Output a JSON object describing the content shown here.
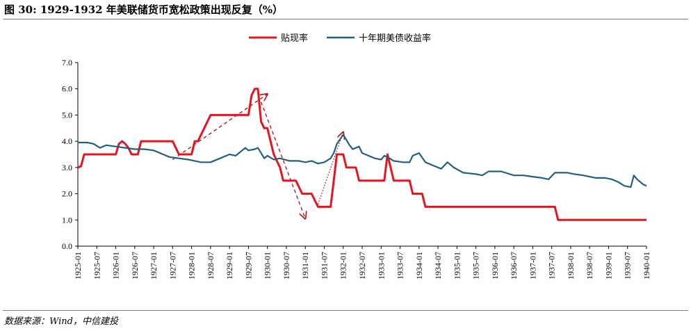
{
  "header": {
    "title": "图 30: 1929-1932 年美联储货币宽松政策出现反复（%）"
  },
  "footer": {
    "source": "数据来源：Wind，中信建投"
  },
  "colors": {
    "discount": "#e8141c",
    "treasury": "#1f5f86",
    "arrow": "#c0141c"
  },
  "chart_data": {
    "type": "line",
    "title": "",
    "xlabel": "",
    "ylabel": "",
    "ylim": [
      0,
      7
    ],
    "yticks": [
      "0.0",
      "1.0",
      "2.0",
      "3.0",
      "4.0",
      "5.0",
      "6.0",
      "7.0"
    ],
    "xlim": [
      "1925-01",
      "1940-01"
    ],
    "xticks": [
      "1925-01",
      "1925-07",
      "1926-01",
      "1926-07",
      "1927-01",
      "1927-07",
      "1928-01",
      "1928-07",
      "1929-01",
      "1929-07",
      "1930-01",
      "1930-07",
      "1931-01",
      "1931-07",
      "1932-01",
      "1932-07",
      "1933-01",
      "1933-07",
      "1934-01",
      "1934-07",
      "1935-01",
      "1935-07",
      "1936-01",
      "1936-07",
      "1937-01",
      "1937-07",
      "1938-01",
      "1938-07",
      "1939-01",
      "1939-07",
      "1940-01"
    ],
    "legend_position": "top",
    "grid": false,
    "series": [
      {
        "name": "贴现率",
        "color": "#e8141c",
        "points": [
          [
            "1925-01",
            3.0
          ],
          [
            "1925-02",
            3.05
          ],
          [
            "1925-03",
            3.5
          ],
          [
            "1925-07",
            3.5
          ],
          [
            "1925-12",
            3.5
          ],
          [
            "1926-01",
            3.5
          ],
          [
            "1926-02",
            3.9
          ],
          [
            "1926-03",
            4.0
          ],
          [
            "1926-04",
            3.9
          ],
          [
            "1926-05",
            3.75
          ],
          [
            "1926-06",
            3.5
          ],
          [
            "1926-07",
            3.5
          ],
          [
            "1926-08",
            3.5
          ],
          [
            "1926-09",
            4.0
          ],
          [
            "1927-01",
            4.0
          ],
          [
            "1927-07",
            4.0
          ],
          [
            "1927-08",
            3.75
          ],
          [
            "1927-09",
            3.5
          ],
          [
            "1928-01",
            3.5
          ],
          [
            "1928-02",
            4.0
          ],
          [
            "1928-03",
            4.0
          ],
          [
            "1928-05",
            4.5
          ],
          [
            "1928-07",
            5.0
          ],
          [
            "1929-01",
            5.0
          ],
          [
            "1929-07",
            5.0
          ],
          [
            "1929-08",
            5.75
          ],
          [
            "1929-09",
            6.0
          ],
          [
            "1929-10",
            6.0
          ],
          [
            "1929-11",
            4.75
          ],
          [
            "1929-12",
            4.5
          ],
          [
            "1930-01",
            4.5
          ],
          [
            "1930-02",
            4.0
          ],
          [
            "1930-03",
            3.5
          ],
          [
            "1930-05",
            3.0
          ],
          [
            "1930-06",
            2.5
          ],
          [
            "1930-10",
            2.5
          ],
          [
            "1930-12",
            2.0
          ],
          [
            "1931-03",
            2.0
          ],
          [
            "1931-05",
            1.5
          ],
          [
            "1931-06",
            1.5
          ],
          [
            "1931-09",
            1.5
          ],
          [
            "1931-10",
            2.5
          ],
          [
            "1931-11",
            3.5
          ],
          [
            "1932-01",
            3.5
          ],
          [
            "1932-02",
            3.0
          ],
          [
            "1932-05",
            3.0
          ],
          [
            "1932-06",
            2.5
          ],
          [
            "1933-01",
            2.5
          ],
          [
            "1933-02",
            2.5
          ],
          [
            "1933-03",
            3.5
          ],
          [
            "1933-04",
            3.0
          ],
          [
            "1933-05",
            2.5
          ],
          [
            "1933-10",
            2.5
          ],
          [
            "1933-11",
            2.0
          ],
          [
            "1934-02",
            2.0
          ],
          [
            "1934-03",
            1.5
          ],
          [
            "1935-01",
            1.5
          ],
          [
            "1936-01",
            1.5
          ],
          [
            "1937-01",
            1.5
          ],
          [
            "1937-07",
            1.5
          ],
          [
            "1937-08",
            1.5
          ],
          [
            "1937-09",
            1.0
          ],
          [
            "1938-01",
            1.0
          ],
          [
            "1939-01",
            1.0
          ],
          [
            "1940-01",
            1.0
          ]
        ]
      },
      {
        "name": "十年期美债收益率",
        "color": "#1f5f86",
        "points": [
          [
            "1925-01",
            3.95
          ],
          [
            "1925-04",
            3.95
          ],
          [
            "1925-06",
            3.9
          ],
          [
            "1925-08",
            3.75
          ],
          [
            "1925-10",
            3.85
          ],
          [
            "1926-01",
            3.8
          ],
          [
            "1926-04",
            3.75
          ],
          [
            "1926-07",
            3.7
          ],
          [
            "1926-10",
            3.7
          ],
          [
            "1927-01",
            3.65
          ],
          [
            "1927-04",
            3.5
          ],
          [
            "1927-06",
            3.4
          ],
          [
            "1927-09",
            3.35
          ],
          [
            "1927-12",
            3.3
          ],
          [
            "1928-02",
            3.25
          ],
          [
            "1928-04",
            3.2
          ],
          [
            "1928-07",
            3.2
          ],
          [
            "1928-10",
            3.35
          ],
          [
            "1929-01",
            3.5
          ],
          [
            "1929-03",
            3.45
          ],
          [
            "1929-05",
            3.65
          ],
          [
            "1929-06",
            3.75
          ],
          [
            "1929-07",
            3.65
          ],
          [
            "1929-09",
            3.7
          ],
          [
            "1929-10",
            3.75
          ],
          [
            "1929-11",
            3.55
          ],
          [
            "1929-12",
            3.35
          ],
          [
            "1930-01",
            3.45
          ],
          [
            "1930-03",
            3.3
          ],
          [
            "1930-05",
            3.35
          ],
          [
            "1930-08",
            3.25
          ],
          [
            "1930-11",
            3.25
          ],
          [
            "1931-01",
            3.2
          ],
          [
            "1931-03",
            3.25
          ],
          [
            "1931-05",
            3.15
          ],
          [
            "1931-07",
            3.2
          ],
          [
            "1931-09",
            3.35
          ],
          [
            "1931-10",
            3.55
          ],
          [
            "1931-11",
            3.9
          ],
          [
            "1932-01",
            4.25
          ],
          [
            "1932-02",
            4.05
          ],
          [
            "1932-03",
            3.85
          ],
          [
            "1932-04",
            3.7
          ],
          [
            "1932-06",
            3.8
          ],
          [
            "1932-07",
            3.55
          ],
          [
            "1932-09",
            3.45
          ],
          [
            "1932-11",
            3.35
          ],
          [
            "1933-01",
            3.3
          ],
          [
            "1933-02",
            3.45
          ],
          [
            "1933-03",
            3.4
          ],
          [
            "1933-05",
            3.25
          ],
          [
            "1933-08",
            3.2
          ],
          [
            "1933-10",
            3.2
          ],
          [
            "1933-11",
            3.45
          ],
          [
            "1934-01",
            3.55
          ],
          [
            "1934-03",
            3.2
          ],
          [
            "1934-06",
            3.05
          ],
          [
            "1934-08",
            2.95
          ],
          [
            "1934-10",
            3.2
          ],
          [
            "1934-12",
            3.0
          ],
          [
            "1935-03",
            2.8
          ],
          [
            "1935-07",
            2.75
          ],
          [
            "1935-09",
            2.7
          ],
          [
            "1935-11",
            2.85
          ],
          [
            "1936-03",
            2.85
          ],
          [
            "1936-07",
            2.7
          ],
          [
            "1936-10",
            2.7
          ],
          [
            "1937-01",
            2.65
          ],
          [
            "1937-04",
            2.6
          ],
          [
            "1937-06",
            2.55
          ],
          [
            "1937-08",
            2.8
          ],
          [
            "1937-12",
            2.8
          ],
          [
            "1938-02",
            2.75
          ],
          [
            "1938-05",
            2.7
          ],
          [
            "1938-07",
            2.65
          ],
          [
            "1938-09",
            2.6
          ],
          [
            "1938-12",
            2.6
          ],
          [
            "1939-02",
            2.55
          ],
          [
            "1939-04",
            2.45
          ],
          [
            "1939-06",
            2.3
          ],
          [
            "1939-08",
            2.25
          ],
          [
            "1939-09",
            2.7
          ],
          [
            "1939-10",
            2.55
          ],
          [
            "1939-12",
            2.35
          ],
          [
            "1940-01",
            2.3
          ]
        ]
      }
    ],
    "annotations": [
      {
        "type": "dashed-arrow",
        "from": [
          "1927-07",
          3.3
        ],
        "to": [
          "1930-01",
          5.8
        ]
      },
      {
        "type": "dashed-arrow",
        "from": [
          "1929-11",
          5.5
        ],
        "to": [
          "1931-01",
          1.05
        ]
      },
      {
        "type": "dotted-arrow",
        "from": [
          "1931-05",
          1.6
        ],
        "to": [
          "1932-01",
          4.35
        ]
      }
    ]
  }
}
